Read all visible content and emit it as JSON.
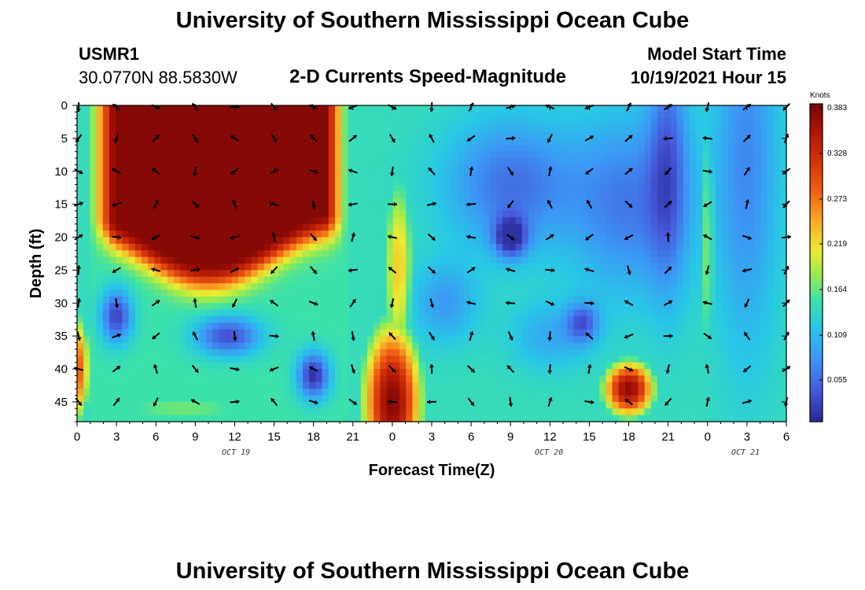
{
  "header": {
    "title": "University of Southern Mississippi Ocean Cube",
    "station_id": "USMR1",
    "coordinates": "30.0770N  88.5830W",
    "plot_title": "2-D Currents Speed-Magnitude",
    "model_label": "Model Start Time",
    "model_value": "10/19/2021 Hour 15"
  },
  "footer": {
    "title": "University of Southern Mississippi Ocean Cube"
  },
  "chart_data": {
    "type": "heatmap",
    "title": "2-D Currents Speed-Magnitude",
    "xlabel": "Forecast Time(Z)",
    "ylabel": "Depth (ft)",
    "x_tick_labels": [
      "0",
      "3",
      "6",
      "9",
      "12",
      "15",
      "18",
      "21",
      "0",
      "3",
      "6",
      "9",
      "12",
      "15",
      "18",
      "21",
      "0",
      "3",
      "6"
    ],
    "x_range_hours": [
      0,
      54
    ],
    "date_labels": [
      "OCT 19",
      "OCT 20",
      "OCT 21"
    ],
    "y_tick_labels": [
      "0",
      "5",
      "10",
      "15",
      "20",
      "25",
      "30",
      "35",
      "40",
      "45"
    ],
    "y_range": [
      0,
      48
    ],
    "y_inverted": true,
    "colorbar": {
      "unit": "Knots",
      "tick_labels": [
        "0.383",
        "0.328",
        "0.273",
        "0.219",
        "0.164",
        "0.109",
        "0.055"
      ],
      "range": [
        0,
        0.383
      ]
    },
    "arrows_shown": true
  }
}
